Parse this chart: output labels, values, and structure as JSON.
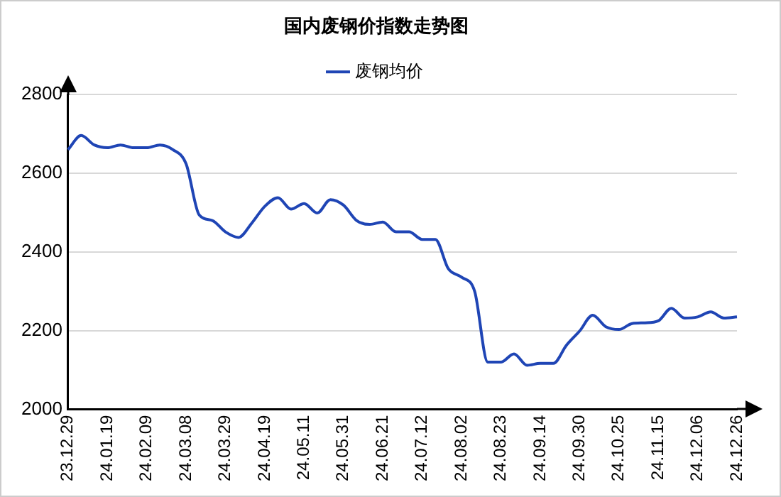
{
  "chart_data": {
    "type": "line",
    "title": "国内废钢价指数走势图",
    "categories": [
      "23.12.29",
      null,
      null,
      "24.01.19",
      null,
      null,
      "24.02.09",
      null,
      null,
      "24.03.08",
      null,
      null,
      "24.03.29",
      null,
      null,
      "24.04.19",
      null,
      null,
      "24.05.11",
      null,
      null,
      "24.05.31",
      null,
      null,
      "24.06.21",
      null,
      null,
      "24.07.12",
      null,
      null,
      "24.08.02",
      null,
      null,
      "24.08.23",
      null,
      null,
      "24.09.14",
      null,
      null,
      "24.09.30",
      null,
      null,
      "24.10.25",
      null,
      null,
      "24.11.15",
      null,
      null,
      "24.12.06",
      null,
      null,
      "24.12.26"
    ],
    "series": [
      {
        "name": "废钢均价",
        "color": "#1f45b5",
        "values": [
          2660,
          2696,
          2672,
          2665,
          2672,
          2665,
          2665,
          2672,
          2660,
          2624,
          2494,
          2480,
          2451,
          2437,
          2473,
          2516,
          2538,
          2509,
          2523,
          2499,
          2533,
          2519,
          2480,
          2470,
          2476,
          2451,
          2451,
          2432,
          2432,
          2357,
          2336,
          2300,
          2120,
          2120,
          2141,
          2112,
          2117,
          2117,
          2163,
          2199,
          2239,
          2210,
          2203,
          2218,
          2220,
          2225,
          2257,
          2232,
          2235,
          2248,
          2232,
          2235
        ]
      }
    ],
    "ylim": [
      2000,
      2800
    ],
    "yticks": [
      2000,
      2200,
      2400,
      2600,
      2800
    ],
    "grid": "y",
    "legend": "top",
    "marker": "none",
    "line_style": "solid"
  }
}
